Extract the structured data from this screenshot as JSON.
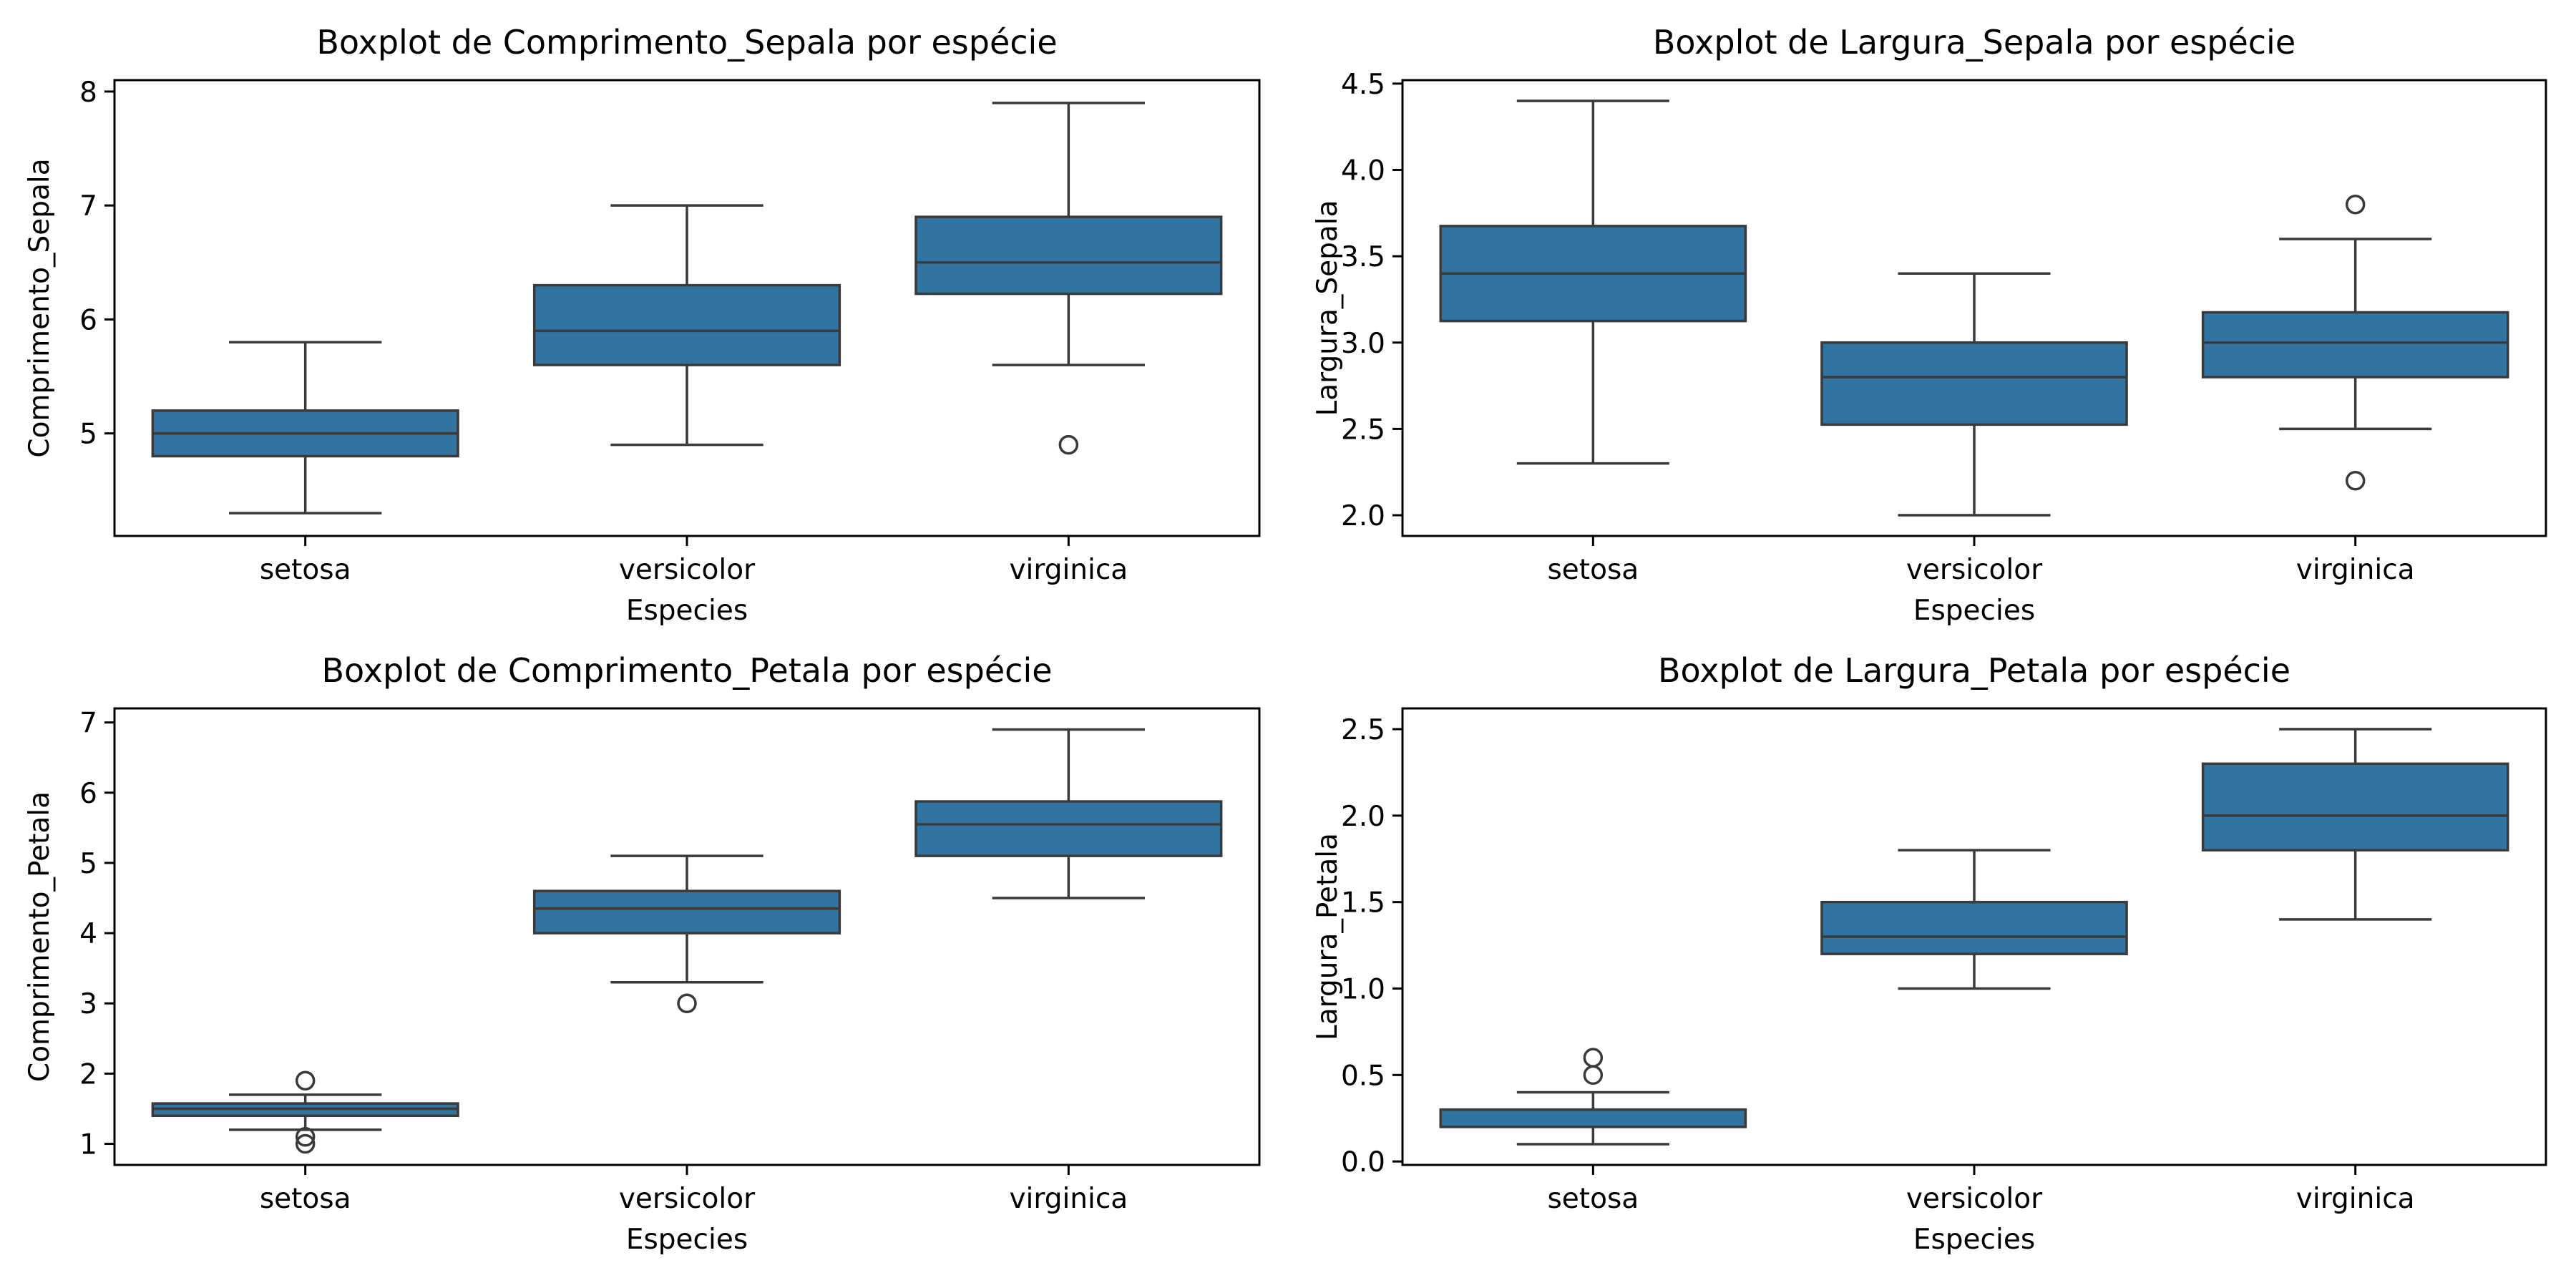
{
  "box_color": "#3274a1",
  "line_color": "#3a3a3a",
  "chart_data": [
    {
      "type": "boxplot",
      "title": "Boxplot de Comprimento_Sepala por espécie",
      "xlabel": "Especies",
      "ylabel": "Comprimento_Sepala",
      "categories": [
        "setosa",
        "versicolor",
        "virginica"
      ],
      "ylim": [
        4.1,
        8.1
      ],
      "yticks": [
        "5",
        "6",
        "7",
        "8"
      ],
      "boxes": [
        {
          "category": "setosa",
          "whislo": 4.3,
          "q1": 4.8,
          "median": 5.0,
          "q3": 5.2,
          "whishi": 5.8,
          "fliers": []
        },
        {
          "category": "versicolor",
          "whislo": 4.9,
          "q1": 5.6,
          "median": 5.9,
          "q3": 6.3,
          "whishi": 7.0,
          "fliers": []
        },
        {
          "category": "virginica",
          "whislo": 5.6,
          "q1": 6.225,
          "median": 6.5,
          "q3": 6.9,
          "whishi": 7.9,
          "fliers": [
            4.9
          ]
        }
      ]
    },
    {
      "type": "boxplot",
      "title": "Boxplot de Largura_Sepala por espécie",
      "xlabel": "Especies",
      "ylabel": "Largura_Sepala",
      "categories": [
        "setosa",
        "versicolor",
        "virginica"
      ],
      "ylim": [
        1.88,
        4.52
      ],
      "yticks": [
        "2.0",
        "2.5",
        "3.0",
        "3.5",
        "4.0",
        "4.5"
      ],
      "boxes": [
        {
          "category": "setosa",
          "whislo": 2.3,
          "q1": 3.125,
          "median": 3.4,
          "q3": 3.675,
          "whishi": 4.4,
          "fliers": []
        },
        {
          "category": "versicolor",
          "whislo": 2.0,
          "q1": 2.525,
          "median": 2.8,
          "q3": 3.0,
          "whishi": 3.4,
          "fliers": []
        },
        {
          "category": "virginica",
          "whislo": 2.5,
          "q1": 2.8,
          "median": 3.0,
          "q3": 3.175,
          "whishi": 3.6,
          "fliers": [
            3.8,
            2.2
          ]
        }
      ]
    },
    {
      "type": "boxplot",
      "title": "Boxplot de Comprimento_Petala por espécie",
      "xlabel": "Especies",
      "ylabel": "Comprimento_Petala",
      "categories": [
        "setosa",
        "versicolor",
        "virginica"
      ],
      "ylim": [
        0.7,
        7.2
      ],
      "yticks": [
        "1",
        "2",
        "3",
        "4",
        "5",
        "6",
        "7"
      ],
      "boxes": [
        {
          "category": "setosa",
          "whislo": 1.2,
          "q1": 1.4,
          "median": 1.5,
          "q3": 1.575,
          "whishi": 1.7,
          "fliers": [
            1.9,
            1.1,
            1.0
          ]
        },
        {
          "category": "versicolor",
          "whislo": 3.3,
          "q1": 4.0,
          "median": 4.35,
          "q3": 4.6,
          "whishi": 5.1,
          "fliers": [
            3.0
          ]
        },
        {
          "category": "virginica",
          "whislo": 4.5,
          "q1": 5.1,
          "median": 5.55,
          "q3": 5.875,
          "whishi": 6.9,
          "fliers": []
        }
      ]
    },
    {
      "type": "boxplot",
      "title": "Boxplot de Largura_Petala por espécie",
      "xlabel": "Especies",
      "ylabel": "Largura_Petala",
      "categories": [
        "setosa",
        "versicolor",
        "virginica"
      ],
      "ylim": [
        -0.02,
        2.62
      ],
      "yticks": [
        "0.0",
        "0.5",
        "1.0",
        "1.5",
        "2.0",
        "2.5"
      ],
      "boxes": [
        {
          "category": "setosa",
          "whislo": 0.1,
          "q1": 0.2,
          "median": 0.2,
          "q3": 0.3,
          "whishi": 0.4,
          "fliers": [
            0.6,
            0.5
          ]
        },
        {
          "category": "versicolor",
          "whislo": 1.0,
          "q1": 1.2,
          "median": 1.3,
          "q3": 1.5,
          "whishi": 1.8,
          "fliers": []
        },
        {
          "category": "virginica",
          "whislo": 1.4,
          "q1": 1.8,
          "median": 2.0,
          "q3": 2.3,
          "whishi": 2.5,
          "fliers": []
        }
      ]
    }
  ]
}
